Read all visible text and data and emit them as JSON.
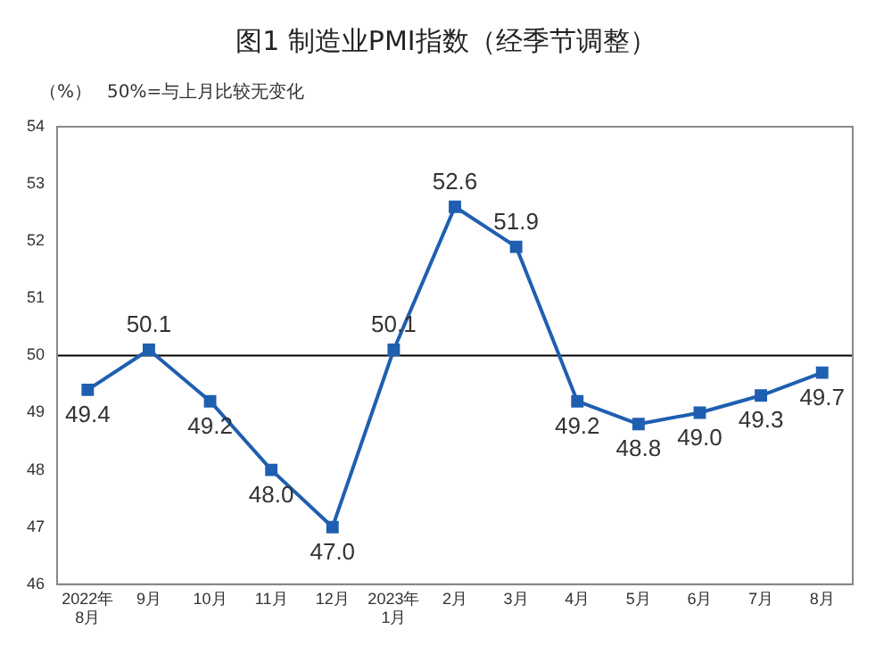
{
  "chart_data": {
    "type": "line",
    "title": "图1 制造业PMI指数（经季节调整）",
    "ylabel": "（%）",
    "annotations": [
      "50%=与上月比较无变化"
    ],
    "categories": [
      "2022年\n8月",
      "9月",
      "10月",
      "11月",
      "12月",
      "2023年\n1月",
      "2月",
      "3月",
      "4月",
      "5月",
      "6月",
      "7月",
      "8月"
    ],
    "series": [
      {
        "color": "#1f5fb0",
        "values": [
          49.4,
          50.1,
          49.2,
          48.0,
          47.0,
          50.1,
          52.6,
          51.9,
          49.2,
          48.8,
          49.0,
          49.3,
          49.7
        ],
        "value_labels": [
          "49.4",
          "50.1",
          "49.2",
          "48.0",
          "47.0",
          "50.1",
          "52.6",
          "51.9",
          "49.2",
          "48.8",
          "49.0",
          "49.3",
          "49.7"
        ]
      }
    ],
    "ylim": [
      46,
      54
    ],
    "yticks": [
      46,
      47,
      48,
      49,
      50,
      51,
      52,
      53,
      54
    ],
    "grid": false,
    "legend": false,
    "marker": "square",
    "line_style": "solid",
    "ref_lines": [
      {
        "axis": "y",
        "value": 50,
        "color": "#000000"
      }
    ]
  }
}
